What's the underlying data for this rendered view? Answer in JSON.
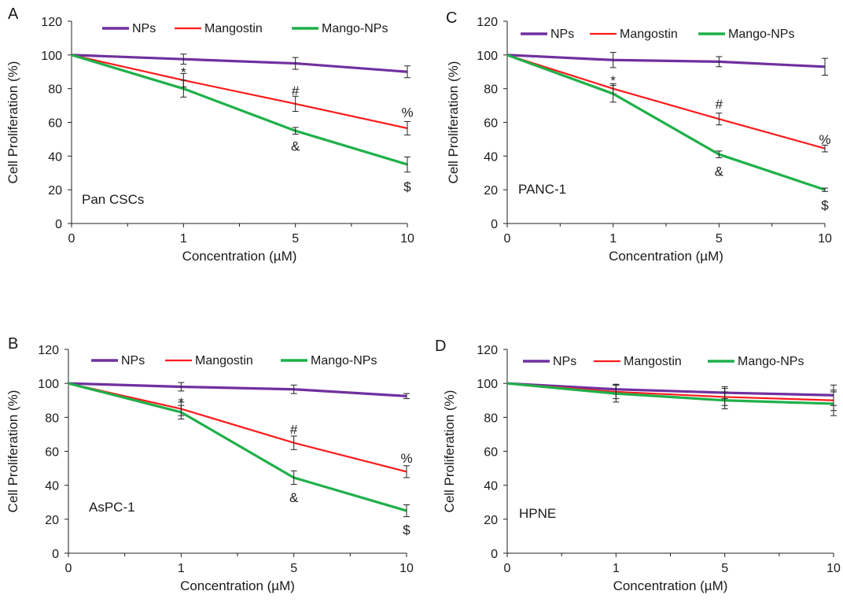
{
  "series_names": [
    "NPs",
    "Mangostin",
    "Mango-NPs"
  ],
  "series_colors": {
    "NPs": "#7030a0",
    "Mangostin": "#ff1a1a",
    "Mango-NPs": "#1fb04a"
  },
  "chart_data": [
    {
      "type": "line",
      "panel_letter": "A",
      "cell_line": "Pan CSCs",
      "xlabel": "Concentration (µM)",
      "ylabel": "Cell Proliferation (%)",
      "categories": [
        "0",
        "1",
        "5",
        "10"
      ],
      "ylim": [
        0,
        120
      ],
      "yticks": [
        "0",
        "20",
        "40",
        "60",
        "80",
        "100",
        "120"
      ],
      "series": [
        {
          "name": "NPs",
          "values": [
            100,
            97.5,
            95,
            90
          ],
          "errors": [
            0,
            3,
            3.5,
            3.5
          ]
        },
        {
          "name": "Mangostin",
          "values": [
            100,
            85,
            71,
            56.5
          ],
          "errors": [
            0,
            4,
            4.5,
            4
          ]
        },
        {
          "name": "Mango-NPs",
          "values": [
            100,
            80,
            55,
            35
          ],
          "errors": [
            0,
            5,
            2,
            4.5
          ]
        }
      ],
      "annotations": [
        {
          "text": "*",
          "x": "1",
          "y": 90
        },
        {
          "text": "#",
          "x": "5",
          "y": 79
        },
        {
          "text": "&",
          "x": "5",
          "y": 46
        },
        {
          "text": "%",
          "x": "10",
          "y": 66
        },
        {
          "text": "$",
          "x": "10",
          "y": 22
        }
      ],
      "legend": "top"
    },
    {
      "type": "line",
      "panel_letter": "C",
      "cell_line": "PANC-1",
      "xlabel": "Concentration (µM)",
      "ylabel": "Cell Proliferation (%)",
      "categories": [
        "0",
        "1",
        "5",
        "10"
      ],
      "ylim": [
        0,
        120
      ],
      "yticks": [
        "0",
        "20",
        "40",
        "60",
        "80",
        "100",
        "120"
      ],
      "series": [
        {
          "name": "NPs",
          "values": [
            100,
            97,
            96,
            93
          ],
          "errors": [
            0,
            4.5,
            3,
            5
          ]
        },
        {
          "name": "Mangostin",
          "values": [
            100,
            80,
            62,
            44.5
          ],
          "errors": [
            0,
            3,
            3.5,
            2
          ]
        },
        {
          "name": "Mango-NPs",
          "values": [
            100,
            77,
            41,
            20
          ],
          "errors": [
            0,
            5,
            2,
            1
          ]
        }
      ],
      "annotations": [
        {
          "text": "*",
          "x": "1",
          "y": 85
        },
        {
          "text": "#",
          "x": "5",
          "y": 71
        },
        {
          "text": "&",
          "x": "5",
          "y": 31
        },
        {
          "text": "%",
          "x": "10",
          "y": 50
        },
        {
          "text": "$",
          "x": "10",
          "y": 11
        }
      ],
      "legend": "top"
    },
    {
      "type": "line",
      "panel_letter": "B",
      "cell_line": "AsPC-1",
      "xlabel": "Concentration (µM)",
      "ylabel": "Cell Proliferation (%)",
      "categories": [
        "0",
        "1",
        "5",
        "10"
      ],
      "ylim": [
        0,
        120
      ],
      "yticks": [
        "0",
        "20",
        "40",
        "60",
        "80",
        "100",
        "120"
      ],
      "series": [
        {
          "name": "NPs",
          "values": [
            100,
            98,
            96.5,
            92.5
          ],
          "errors": [
            0,
            2.5,
            2.5,
            1.5
          ]
        },
        {
          "name": "Mangostin",
          "values": [
            100,
            85,
            65,
            48
          ],
          "errors": [
            0,
            4,
            4,
            3.5
          ]
        },
        {
          "name": "Mango-NPs",
          "values": [
            100,
            83,
            44.5,
            25
          ],
          "errors": [
            0,
            4,
            4,
            3.5
          ]
        }
      ],
      "annotations": [
        {
          "text": "*",
          "x": "1",
          "y": 89
        },
        {
          "text": "#",
          "x": "5",
          "y": 73
        },
        {
          "text": "&",
          "x": "5",
          "y": 33
        },
        {
          "text": "%",
          "x": "10",
          "y": 56
        },
        {
          "text": "$",
          "x": "10",
          "y": 14
        }
      ],
      "legend": "top"
    },
    {
      "type": "line",
      "panel_letter": "D",
      "cell_line": "HPNE",
      "xlabel": "Concentration (µM)",
      "ylabel": "Cell Proliferation (%)",
      "categories": [
        "0",
        "1",
        "5",
        "10"
      ],
      "ylim": [
        0,
        120
      ],
      "yticks": [
        "0",
        "20",
        "40",
        "60",
        "80",
        "100",
        "120"
      ],
      "series": [
        {
          "name": "NPs",
          "values": [
            100,
            96.5,
            94.5,
            93
          ],
          "errors": [
            0,
            3,
            3.5,
            6
          ]
        },
        {
          "name": "Mangostin",
          "values": [
            100,
            95,
            92,
            90
          ],
          "errors": [
            0,
            4,
            5,
            6
          ]
        },
        {
          "name": "Mango-NPs",
          "values": [
            100,
            94,
            90,
            88
          ],
          "errors": [
            0,
            5,
            5,
            7
          ]
        }
      ],
      "annotations": [],
      "legend": "top"
    }
  ]
}
